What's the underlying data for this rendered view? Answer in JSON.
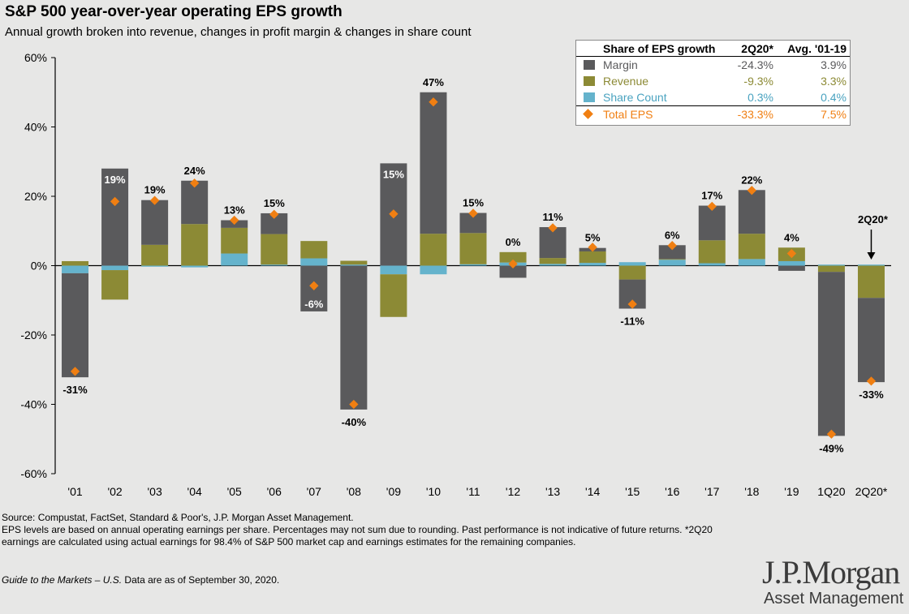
{
  "title": "S&P 500 year-over-year operating EPS growth",
  "subtitle": "Annual growth broken into revenue, changes in profit margin & changes in share count",
  "colors": {
    "margin": "#5a5a5c",
    "revenue": "#8c8a35",
    "share": "#65b3cc",
    "total": "#f07f12",
    "background": "#e7e7e6"
  },
  "chart_data": {
    "type": "bar",
    "stacked": true,
    "categories": [
      "'01",
      "'02",
      "'03",
      "'04",
      "'05",
      "'06",
      "'07",
      "'08",
      "'09",
      "'10",
      "'11",
      "'12",
      "'13",
      "'14",
      "'15",
      "'16",
      "'17",
      "'18",
      "'19",
      "1Q20",
      "2Q20*"
    ],
    "series": [
      {
        "name": "Share Count",
        "values": [
          -2.2,
          -1.3,
          -0.3,
          -0.5,
          3.5,
          0.3,
          2.1,
          0.3,
          -2.5,
          -2.5,
          0.4,
          0.9,
          0.5,
          0.8,
          1.0,
          1.7,
          0.7,
          1.9,
          1.3,
          0.3,
          0.3
        ]
      },
      {
        "name": "Revenue",
        "values": [
          1.3,
          -8.5,
          6.0,
          12.0,
          7.4,
          8.8,
          5.0,
          1.1,
          -12.3,
          9.2,
          9.0,
          3.0,
          1.7,
          3.3,
          -4.0,
          0.2,
          6.6,
          7.3,
          3.9,
          -1.8,
          -9.3
        ]
      },
      {
        "name": "Margin",
        "values": [
          -30.0,
          28.0,
          12.9,
          12.5,
          2.2,
          6.0,
          -13.2,
          -41.5,
          29.5,
          40.8,
          5.8,
          -3.5,
          8.9,
          1.0,
          -8.4,
          4.0,
          10.0,
          12.6,
          -1.5,
          -47.3,
          -24.3
        ]
      }
    ],
    "total_eps": [
      -30.5,
      18.5,
      18.8,
      23.8,
      13.1,
      14.8,
      -5.8,
      -40.0,
      14.9,
      47.2,
      15.1,
      0.5,
      10.9,
      5.3,
      -11.1,
      5.8,
      17.1,
      21.7,
      3.5,
      -48.6,
      -33.3
    ],
    "value_labels": [
      "-31%",
      "19%",
      "19%",
      "24%",
      "13%",
      "15%",
      "-6%",
      "-40%",
      "15%",
      "47%",
      "15%",
      "0%",
      "11%",
      "5%",
      "-11%",
      "6%",
      "17%",
      "22%",
      "4%",
      "-49%",
      "-33%"
    ],
    "ylim": [
      -60,
      60
    ],
    "yticks": [
      "-60%",
      "-40%",
      "-20%",
      "0%",
      "20%",
      "40%",
      "60%"
    ],
    "annotation": "2Q20*"
  },
  "legend": {
    "header": {
      "label": "Share of EPS growth",
      "col1": "2Q20*",
      "col2": "Avg. '01-19"
    },
    "rows": [
      {
        "label": "Margin",
        "v1": "-24.3%",
        "v2": "3.9%"
      },
      {
        "label": "Revenue",
        "v1": "-9.3%",
        "v2": "3.3%"
      },
      {
        "label": "Share Count",
        "v1": "0.3%",
        "v2": "0.4%"
      },
      {
        "label": "Total EPS",
        "v1": "-33.3%",
        "v2": "7.5%"
      }
    ]
  },
  "footer": {
    "source": "Source: Compustat, FactSet, Standard & Poor's, J.P. Morgan Asset Management.",
    "notes": "EPS levels are based on annual operating earnings per share. Percentages may not sum due to rounding. Past performance is not indicative of future returns. *2Q20 earnings are calculated using actual earnings for 98.4% of S&P 500 market cap and earnings estimates for the remaining companies.",
    "guide_title": "Guide to the Markets – U.S.",
    "guide_date": " Data are as of September 30, 2020."
  },
  "logo": {
    "line1": "J.P.Morgan",
    "line2": "Asset Management"
  }
}
